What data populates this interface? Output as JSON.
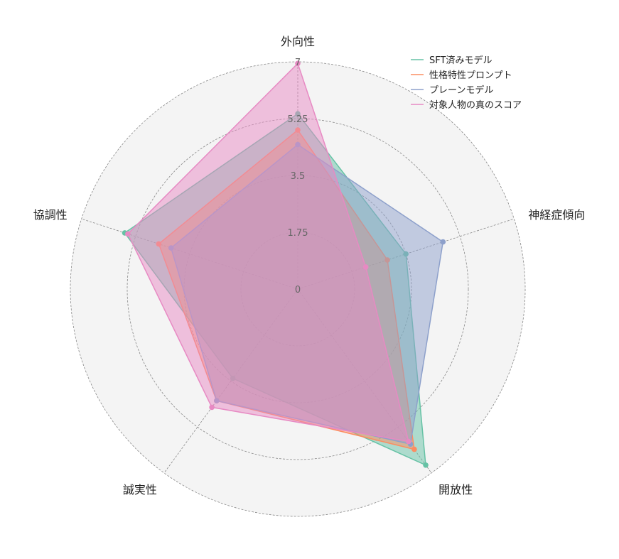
{
  "chart_data": {
    "type": "radar",
    "axes": [
      "外向性",
      "神経症傾向",
      "開放性",
      "誠実性",
      "協調性"
    ],
    "rlim": [
      0,
      7
    ],
    "ticks": [
      {
        "value": 0,
        "label": "0"
      },
      {
        "value": 1.75,
        "label": "1.75"
      },
      {
        "value": 3.5,
        "label": "3.5"
      },
      {
        "value": 5.25,
        "label": "5.25"
      },
      {
        "value": 7,
        "label": "7"
      }
    ],
    "grid": true,
    "legend_position": "top-right",
    "series": [
      {
        "name": "SFT済みモデル",
        "color": "#66c2a5",
        "values": [
          5.4,
          3.5,
          6.7,
          3.4,
          5.6
        ]
      },
      {
        "name": "性格特性プロンプト",
        "color": "#fc8d62",
        "values": [
          4.9,
          2.9,
          6.1,
          4.25,
          4.5
        ]
      },
      {
        "name": "プレーンモデル",
        "color": "#8da0cb",
        "values": [
          4.45,
          4.7,
          5.9,
          4.25,
          4.1
        ]
      },
      {
        "name": "対象人物の真のスコア",
        "color": "#e78ac3",
        "values": [
          6.95,
          2.2,
          5.8,
          4.5,
          5.5
        ]
      }
    ]
  }
}
